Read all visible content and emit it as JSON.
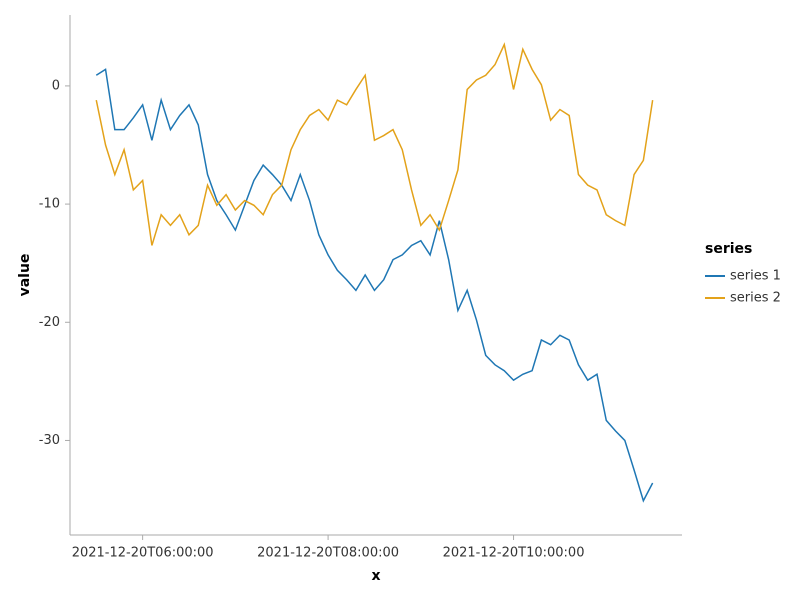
{
  "chart_data": {
    "type": "line",
    "x_label": "x",
    "y_label": "value",
    "legend_title": "series",
    "legend_position": "right",
    "x": [
      "2021-12-20T05:30:00",
      "2021-12-20T05:36:00",
      "2021-12-20T05:42:00",
      "2021-12-20T05:48:00",
      "2021-12-20T05:54:00",
      "2021-12-20T06:00:00",
      "2021-12-20T06:06:00",
      "2021-12-20T06:12:00",
      "2021-12-20T06:18:00",
      "2021-12-20T06:24:00",
      "2021-12-20T06:30:00",
      "2021-12-20T06:36:00",
      "2021-12-20T06:42:00",
      "2021-12-20T06:48:00",
      "2021-12-20T06:54:00",
      "2021-12-20T07:00:00",
      "2021-12-20T07:06:00",
      "2021-12-20T07:12:00",
      "2021-12-20T07:18:00",
      "2021-12-20T07:24:00",
      "2021-12-20T07:30:00",
      "2021-12-20T07:36:00",
      "2021-12-20T07:42:00",
      "2021-12-20T07:48:00",
      "2021-12-20T07:54:00",
      "2021-12-20T08:00:00",
      "2021-12-20T08:06:00",
      "2021-12-20T08:12:00",
      "2021-12-20T08:18:00",
      "2021-12-20T08:24:00",
      "2021-12-20T08:30:00",
      "2021-12-20T08:36:00",
      "2021-12-20T08:42:00",
      "2021-12-20T08:48:00",
      "2021-12-20T08:54:00",
      "2021-12-20T09:00:00",
      "2021-12-20T09:06:00",
      "2021-12-20T09:12:00",
      "2021-12-20T09:18:00",
      "2021-12-20T09:24:00",
      "2021-12-20T09:30:00",
      "2021-12-20T09:36:00",
      "2021-12-20T09:42:00",
      "2021-12-20T09:48:00",
      "2021-12-20T09:54:00",
      "2021-12-20T10:00:00",
      "2021-12-20T10:06:00",
      "2021-12-20T10:12:00",
      "2021-12-20T10:18:00",
      "2021-12-20T10:24:00",
      "2021-12-20T10:30:00",
      "2021-12-20T10:36:00",
      "2021-12-20T10:42:00",
      "2021-12-20T10:48:00",
      "2021-12-20T10:54:00",
      "2021-12-20T11:00:00",
      "2021-12-20T11:06:00",
      "2021-12-20T11:12:00",
      "2021-12-20T11:18:00",
      "2021-12-20T11:24:00",
      "2021-12-20T11:30:00"
    ],
    "series": [
      {
        "name": "series 1",
        "color": "#1f77b4",
        "values": [
          0.9,
          1.4,
          -3.7,
          -3.7,
          -2.7,
          -1.6,
          -4.6,
          -1.2,
          -3.7,
          -2.5,
          -1.6,
          -3.3,
          -7.5,
          -9.7,
          -10.9,
          -12.2,
          -10.1,
          -8,
          -6.7,
          -7.5,
          -8.4,
          -9.7,
          -7.5,
          -9.7,
          -12.6,
          -14.3,
          -15.6,
          -16.4,
          -17.3,
          -16,
          -17.3,
          -16.4,
          -14.7,
          -14.3,
          -13.5,
          -13.1,
          -14.3,
          -11.4,
          -14.7,
          -19,
          -17.3,
          -19.8,
          -22.8,
          -23.6,
          -24.1,
          -24.9,
          -24.4,
          -24.1,
          -21.5,
          -21.9,
          -21.1,
          -21.5,
          -23.6,
          -24.9,
          -24.4,
          -28.3,
          -29.2,
          -30,
          -32.5,
          -35.1,
          -33.6
        ]
      },
      {
        "name": "series 2",
        "color": "#e3a21a",
        "values": [
          -1.2,
          -5,
          -7.5,
          -5.4,
          -8.8,
          -8,
          -13.5,
          -10.9,
          -11.8,
          -10.9,
          -12.6,
          -11.8,
          -8.4,
          -10.1,
          -9.2,
          -10.5,
          -9.7,
          -10.1,
          -10.9,
          -9.2,
          -8.4,
          -5.4,
          -3.7,
          -2.5,
          -2,
          -2.9,
          -1.2,
          -1.6,
          -0.3,
          0.9,
          -4.6,
          -4.2,
          -3.7,
          -5.4,
          -8.8,
          -11.8,
          -10.9,
          -12.2,
          -9.7,
          -7.1,
          -0.3,
          0.5,
          0.9,
          1.8,
          3.5,
          -0.3,
          3.1,
          1.4,
          0.1,
          -2.9,
          -2,
          -2.5,
          -7.5,
          -8.4,
          -8.8,
          -10.9,
          -11.4,
          -11.8,
          -7.5,
          -6.3,
          -1.2
        ]
      }
    ],
    "xlim": [
      "2021-12-20T05:13:00",
      "2021-12-20T11:49:00"
    ],
    "xticks": [
      "2021-12-20T06:00:00",
      "2021-12-20T08:00:00",
      "2021-12-20T10:00:00"
    ],
    "ylim": [
      -38,
      6
    ],
    "yticks": [
      0,
      -10,
      -20,
      -30
    ],
    "grid": false
  }
}
